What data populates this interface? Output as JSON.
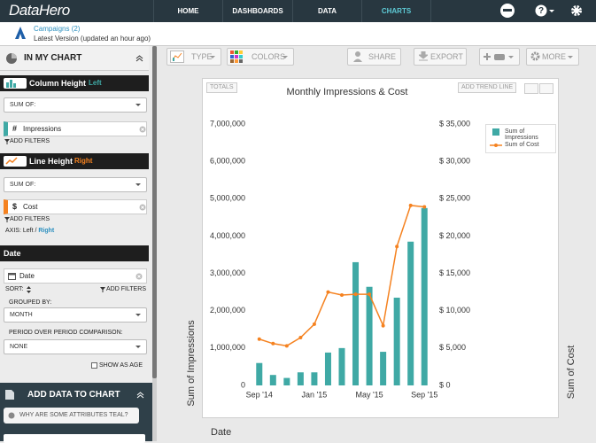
{
  "nav": {
    "logo": "DataHero",
    "items": [
      "HOME",
      "DASHBOARDS",
      "DATA",
      "CHARTS"
    ],
    "help_icon": "?"
  },
  "subheader": {
    "dataset": "Campaigns (2)",
    "version": "Latest Version (updated an hour ago)"
  },
  "sidebar": {
    "title": "IN MY CHART",
    "column": {
      "label": "Column Height",
      "axis": "Left",
      "sum": "SUM OF:",
      "icon": "#",
      "field": "Impressions",
      "filters": "ADD FILTERS"
    },
    "line": {
      "label": "Line Height",
      "axis": "Right",
      "sum": "SUM OF:",
      "icon": "$",
      "field": "Cost",
      "filters": "ADD FILTERS",
      "axis_prefix": "AXIS: Left /",
      "axis_choice": "Right"
    },
    "date": {
      "header": "Date",
      "field": "Date",
      "sort": "SORT:",
      "filters": "ADD FILTERS",
      "grouped": "GROUPED BY:",
      "group_value": "MONTH",
      "period": "PERIOD OVER PERIOD COMPARISON:",
      "period_value": "NONE",
      "age": "SHOW AS AGE"
    },
    "add": {
      "title": "ADD DATA TO CHART",
      "help": "WHY ARE SOME ATTRIBUTES TEAL?"
    }
  },
  "toolbar": {
    "type": "TYPE",
    "colors": "COLORS",
    "share": "SHARE",
    "export": "EXPORT",
    "more": "MORE"
  },
  "chart_controls": {
    "totals": "TOTALS",
    "trend": "ADD TREND LINE"
  },
  "chart_data": {
    "type": "combo",
    "title": "Monthly Impressions & Cost",
    "x_label": "Date",
    "y_label": "Sum of Impressions",
    "y2_label": "Sum of Cost",
    "categories": [
      "Sep '14",
      null,
      null,
      null,
      "Jan '15",
      null,
      null,
      null,
      "May '15",
      null,
      null,
      null,
      "Sep '15"
    ],
    "series": [
      {
        "name": "Sum of Impressions",
        "type": "bar",
        "color": "#3fa9a5",
        "values": [
          600000,
          280000,
          200000,
          350000,
          350000,
          880000,
          1000000,
          3300000,
          2640000,
          900000,
          2350000,
          3850000,
          4750000
        ]
      },
      {
        "name": "Sum of Cost",
        "type": "line",
        "axis": "y2",
        "color": "#f58220",
        "values": [
          6200,
          5600,
          5300,
          6400,
          8200,
          12500,
          12100,
          12200,
          12200,
          8000,
          18600,
          24100,
          23900
        ]
      }
    ],
    "ylim": [
      0,
      7000000
    ],
    "yticks": [
      0,
      {
        "value": 1000000,
        "label": "1,000,000"
      },
      {
        "value": 2000000,
        "label": "2,000,000"
      },
      {
        "value": 3000000,
        "label": "3,000,000"
      },
      {
        "value": 4000000,
        "label": "4,000,000"
      },
      {
        "value": 5000000,
        "label": "5,000,000"
      },
      {
        "value": 6000000,
        "label": "6,000,000"
      },
      {
        "value": 7000000,
        "label": "7,000,000"
      }
    ],
    "y2lim": [
      0,
      35000
    ],
    "y2ticks": [
      {
        "value": 0,
        "label": "$ 0"
      },
      {
        "value": 5000,
        "label": "$ 5,000"
      },
      {
        "value": 10000,
        "label": "$ 10,000"
      },
      {
        "value": 15000,
        "label": "$ 15,000"
      },
      {
        "value": 20000,
        "label": "$ 20,000"
      },
      {
        "value": 25000,
        "label": "$ 25,000"
      },
      {
        "value": 30000,
        "label": "$ 30,000"
      },
      {
        "value": 35000,
        "label": "$ 35,000"
      }
    ],
    "grid": false,
    "legend": "top-right"
  }
}
